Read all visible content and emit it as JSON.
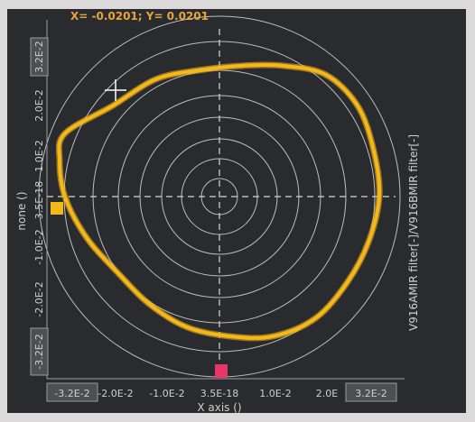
{
  "readout": {
    "text": "X= -0.0201; Y= 0.0201"
  },
  "x_axis": {
    "title": "X axis ()",
    "ticks": [
      "-3.2E-2",
      "-2.0E-2",
      "-1.0E-2",
      "3.5E-18",
      "1.0E-2",
      "2.0E",
      "3.2E-2"
    ]
  },
  "y_axis": {
    "title": "none ()",
    "ticks": [
      "3.2E-2",
      "2.0E-2",
      "1.0E-2",
      "3.5E-18",
      "-1.0E-2",
      "-2.0E-2",
      "-3.2E-2"
    ]
  },
  "right_label": "V916AMIR filter[-]/V916BMIR filter[-]",
  "colors": {
    "trace": "#f5b81a",
    "grid": "#bdbdbd",
    "background": "#2a2b2f",
    "marker_x": "#e8356a",
    "marker_y": "#f5b81a"
  },
  "icons": {
    "cursor": "crosshair-cursor-icon"
  },
  "chart_data": {
    "type": "line",
    "title": "",
    "xlabel": "X axis ()",
    "ylabel": "none ()",
    "xlim": [
      -0.032,
      0.032
    ],
    "ylim": [
      -0.032,
      0.032
    ],
    "grid": "polar-circles",
    "series": [
      {
        "x": [
          -0.0201,
          -0.012,
          -0.004,
          0.004,
          0.012,
          0.02,
          0.026,
          0.029,
          0.03,
          0.028,
          0.024,
          0.018,
          0.01,
          0.002,
          -0.006,
          -0.013,
          -0.019,
          -0.025,
          -0.029,
          -0.03,
          -0.029,
          -0.0201
        ],
        "y": [
          0.0201,
          0.026,
          0.028,
          0.029,
          0.029,
          0.027,
          0.02,
          0.01,
          0.0,
          -0.01,
          -0.019,
          -0.027,
          -0.031,
          -0.031,
          -0.029,
          -0.024,
          -0.017,
          -0.009,
          0.0,
          0.008,
          0.014,
          0.0201
        ]
      }
    ]
  }
}
